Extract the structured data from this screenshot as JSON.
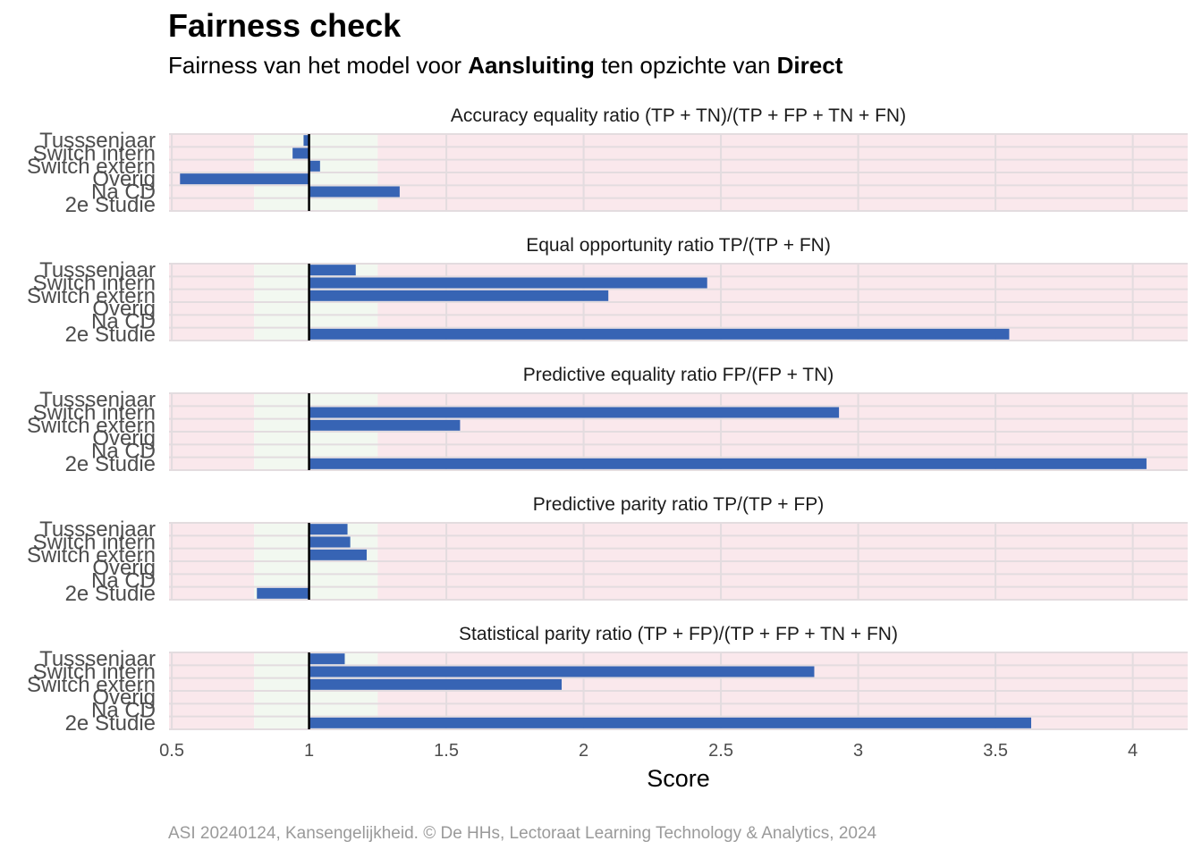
{
  "title": "Fairness check",
  "subtitle": {
    "part1": "Fairness van het model voor ",
    "model": "Aansluiting",
    "part2": " ten opzichte van ",
    "reference": "Direct"
  },
  "caption": "ASI 20240124, Kansengelijkheid. © De HHs, Lectoraat Learning Technology & Analytics, 2024",
  "chart_data": {
    "type": "bar",
    "orientation": "horizontal",
    "xlabel": "Score",
    "x_ticks": [
      "0.5",
      "1",
      "1.5",
      "2",
      "2.5",
      "3",
      "3.5",
      "4"
    ],
    "xlim": [
      0.49,
      4.2
    ],
    "reference_line": 1,
    "fair_range": [
      0.8,
      1.25
    ],
    "colors": {
      "bar": "#3764b4",
      "fair_band": "#f2f8f0",
      "unfair_band": "#fae8ec",
      "grid": "#e3dcdf",
      "reference": "#000000"
    },
    "categories": [
      "Tusssenjaar",
      "Switch intern",
      "Switch extern",
      "Overig",
      "Na CD",
      "2e Studie"
    ],
    "panels": [
      {
        "name": "Accuracy equality ratio",
        "formula": "(TP + TN)/(TP + FP + TN + FN)",
        "values": [
          0.98,
          0.94,
          1.04,
          0.53,
          1.33,
          null
        ]
      },
      {
        "name": "Equal opportunity ratio",
        "formula": "TP/(TP + FN)",
        "values": [
          1.17,
          2.45,
          2.09,
          null,
          null,
          3.55
        ]
      },
      {
        "name": "Predictive equality ratio",
        "formula": "FP/(FP + TN)",
        "values": [
          null,
          2.93,
          1.55,
          null,
          null,
          4.05
        ]
      },
      {
        "name": "Predictive parity ratio",
        "formula": "TP/(TP + FP)",
        "values": [
          1.14,
          1.15,
          1.21,
          null,
          null,
          0.81
        ]
      },
      {
        "name": "Statistical parity ratio",
        "formula": "(TP + FP)/(TP + FP + TN + FN)",
        "values": [
          1.13,
          2.84,
          1.92,
          null,
          null,
          3.63
        ]
      }
    ]
  }
}
